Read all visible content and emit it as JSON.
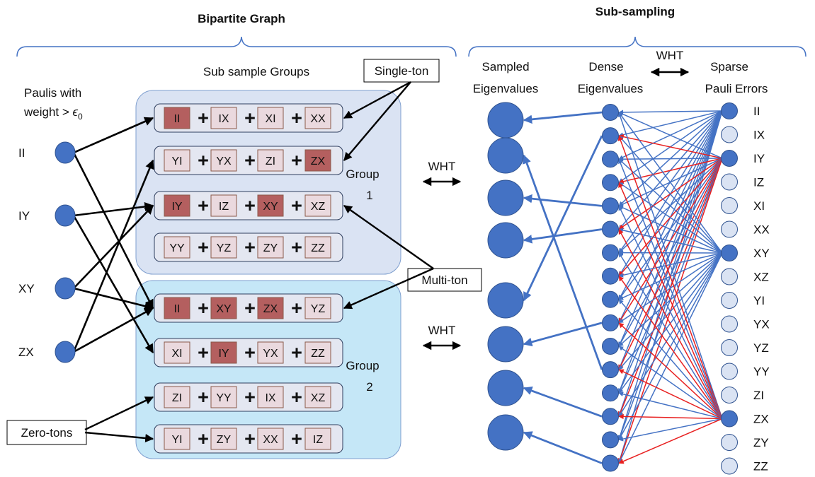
{
  "titles": {
    "bipartite": "Bipartite Graph",
    "subsampling": "Sub-sampling"
  },
  "left": {
    "paulis_title_line1": "Paulis with",
    "paulis_title_line2": "weight > ",
    "paulis_title_epsilon": "ϵ",
    "paulis_title_sub": "0",
    "pauli_nodes": [
      "II",
      "IY",
      "XY",
      "ZX"
    ],
    "groups_title": "Sub sample Groups",
    "group1_label": "Group",
    "group1_number": "1",
    "group2_label": "Group",
    "group2_number": "2",
    "plus": "+",
    "rows": [
      [
        {
          "t": "II",
          "on": true
        },
        {
          "t": "IX",
          "on": false
        },
        {
          "t": "XI",
          "on": false
        },
        {
          "t": "XX",
          "on": false
        }
      ],
      [
        {
          "t": "YI",
          "on": false
        },
        {
          "t": "YX",
          "on": false
        },
        {
          "t": "ZI",
          "on": false
        },
        {
          "t": "ZX",
          "on": true
        }
      ],
      [
        {
          "t": "IY",
          "on": true
        },
        {
          "t": "IZ",
          "on": false
        },
        {
          "t": "XY",
          "on": true
        },
        {
          "t": "XZ",
          "on": false
        }
      ],
      [
        {
          "t": "YY",
          "on": false
        },
        {
          "t": "YZ",
          "on": false
        },
        {
          "t": "ZY",
          "on": false
        },
        {
          "t": "ZZ",
          "on": false
        }
      ],
      [
        {
          "t": "II",
          "on": true
        },
        {
          "t": "XY",
          "on": true
        },
        {
          "t": "ZX",
          "on": true
        },
        {
          "t": "YZ",
          "on": false
        }
      ],
      [
        {
          "t": "XI",
          "on": false
        },
        {
          "t": "IY",
          "on": true
        },
        {
          "t": "YX",
          "on": false
        },
        {
          "t": "ZZ",
          "on": false
        }
      ],
      [
        {
          "t": "ZI",
          "on": false
        },
        {
          "t": "YY",
          "on": false
        },
        {
          "t": "IX",
          "on": false
        },
        {
          "t": "XZ",
          "on": false
        }
      ],
      [
        {
          "t": "YI",
          "on": false
        },
        {
          "t": "ZY",
          "on": false
        },
        {
          "t": "XX",
          "on": false
        },
        {
          "t": "IZ",
          "on": false
        }
      ]
    ],
    "callouts": {
      "singleton": "Single-ton",
      "multiton": "Multi-ton",
      "zerotons": "Zero-tons"
    },
    "wht_label": "WHT"
  },
  "right": {
    "sampled_line1": "Sampled",
    "sampled_line2": "Eigenvalues",
    "dense_line1": "Dense",
    "dense_line2": "Eigenvalues",
    "sparse_line1": "Sparse",
    "sparse_line2": "Pauli Errors",
    "wht_label": "WHT",
    "pauli_labels": [
      "II",
      "IX",
      "IY",
      "IZ",
      "XI",
      "XX",
      "XY",
      "XZ",
      "YI",
      "YX",
      "YZ",
      "YY",
      "ZI",
      "ZX",
      "ZY",
      "ZZ"
    ],
    "active_paulis": [
      "II",
      "IY",
      "XY",
      "ZX"
    ]
  },
  "colors": {
    "node_blue": "#4472c4",
    "node_light": "#dae3f3",
    "group1_fill": "#dae3f3",
    "group2_fill": "#c5e7f7",
    "term_on": "#b45f5f",
    "term_off": "#ead9de",
    "plus_blue": "#4f81bd",
    "edge_red": "#e82020",
    "brace_blue": "#4472c4"
  }
}
